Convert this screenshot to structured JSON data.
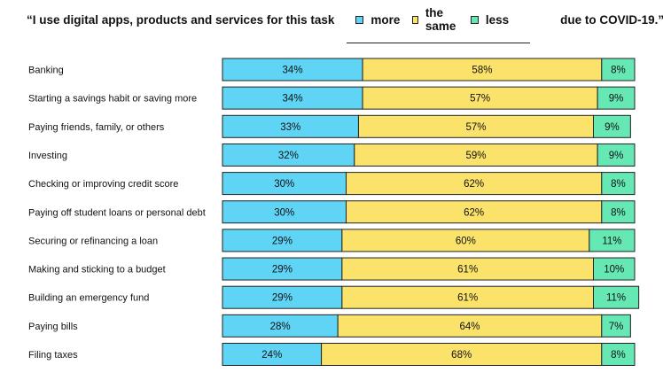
{
  "title": {
    "prefix": "“I use digital apps, products and services for this task",
    "suffix": "due to COVID-19.”"
  },
  "chart_data": {
    "type": "bar",
    "orientation": "horizontal",
    "stacked": true,
    "value_suffix": "%",
    "categories": [
      "Banking",
      "Starting a savings habit or saving more",
      "Paying friends, family, or others",
      "Investing",
      "Checking or improving credit score",
      "Paying off student loans or personal debt",
      "Securing or refinancing a loan",
      "Making and sticking to a budget",
      "Building an emergency fund",
      "Paying bills",
      "Filing taxes"
    ],
    "series": [
      {
        "name": "more",
        "color": "#5fd4f5",
        "values": [
          34,
          34,
          33,
          32,
          30,
          30,
          29,
          29,
          29,
          28,
          24
        ]
      },
      {
        "name": "the same",
        "color": "#fbe36b",
        "values": [
          58,
          57,
          57,
          59,
          62,
          62,
          60,
          61,
          61,
          64,
          68
        ]
      },
      {
        "name": "less",
        "color": "#66e8b4",
        "values": [
          8,
          9,
          9,
          9,
          8,
          8,
          11,
          10,
          11,
          7,
          8
        ]
      }
    ],
    "xlim": [
      0,
      100
    ],
    "legend_position": "top",
    "grid": false
  }
}
